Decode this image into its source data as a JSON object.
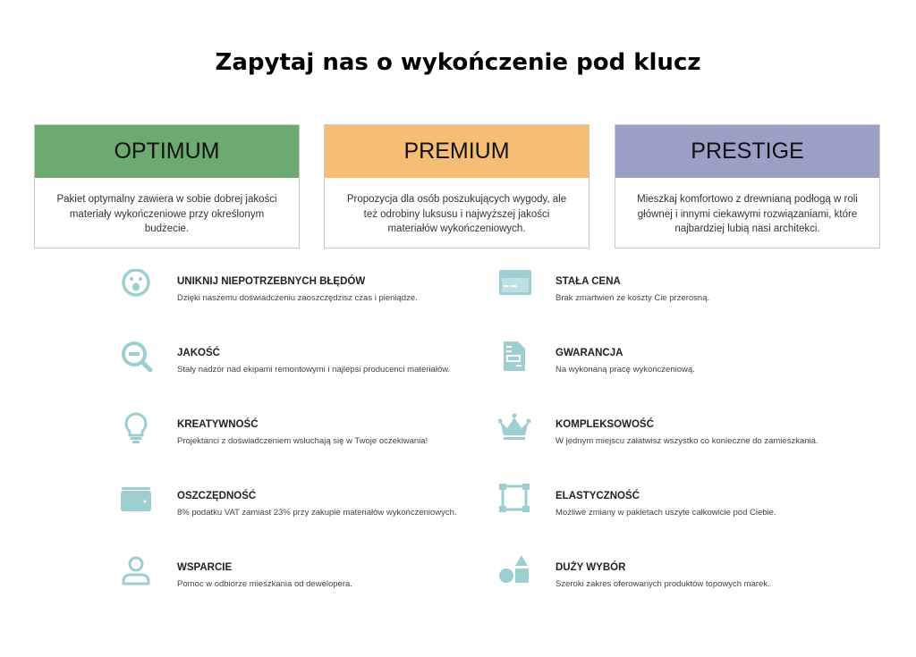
{
  "title": "Zapytaj nas o wykończenie pod klucz",
  "colors": {
    "optimum": "#6daa72",
    "premium": "#f6be74",
    "prestige": "#9b9fc6",
    "icon": "#9dcfd0"
  },
  "packages": [
    {
      "name": "OPTIMUM",
      "description": "Pakiet optymalny zawiera w sobie dobrej jakości materiały wykończeniowe przy określonym budżecie."
    },
    {
      "name": "PREMIUM",
      "description": "Propozycja dla osób poszukujących wygody, ale też odrobiny luksusu i najwyższej jakości materiałów wykończeniowych."
    },
    {
      "name": "PRESTIGE",
      "description": "Mieszkaj komfortowo z drewnianą podłogą w roli głównej i innymi ciekawymi rozwiązaniami, które najbardziej lubią nasi architekci."
    }
  ],
  "features_left": [
    {
      "icon": "surprised-face-icon",
      "title": "UNIKNIJ NIEPOTRZEBNYCH BŁĘDÓW",
      "description": "Dzięki naszemu doświadczeniu zaoszczędzisz czas i pieniądze."
    },
    {
      "icon": "zoom-out-magnifier-icon",
      "title": "JAKOŚĆ",
      "description": "Stały nadzór nad ekipami remontowymi i najlepsi producenci materiałów."
    },
    {
      "icon": "lightbulb-icon",
      "title": "KREATYWNOŚĆ",
      "description": "Projektanci z doświadczeniem wsłuchają się w Twoje oczekiwania!"
    },
    {
      "icon": "wallet-icon",
      "title": "OSZCZĘDNOŚĆ",
      "description": "8% podatku VAT zamiast 23% przy zakupie materiałów wykończeniowych."
    },
    {
      "icon": "user-icon",
      "title": "WSPARCIE",
      "description": "Pomoc w odbiorze mieszkania od dewelopera."
    }
  ],
  "features_right": [
    {
      "icon": "credit-card-icon",
      "title": "STAŁA CENA",
      "description": "Brak zmartwień ze koszty Cie przerosną."
    },
    {
      "icon": "document-icon",
      "title": "GWARANCJA",
      "description": "Na wykonaną pracę wykończeniową."
    },
    {
      "icon": "crown-icon",
      "title": "KOMPLEKSOWOŚĆ",
      "description": "W jednym miejscu załatwisz wszystko co konieczne do zamieszkania."
    },
    {
      "icon": "vector-square-icon",
      "title": "ELASTYCZNOŚĆ",
      "description": "Możliwe zmiany w pakietach uszyte całkowicie pod Ciebie."
    },
    {
      "icon": "shapes-icon",
      "title": "DUŻY WYBÓR",
      "description": "Szeroki zakres oferowanych produktów topowych marek."
    }
  ]
}
